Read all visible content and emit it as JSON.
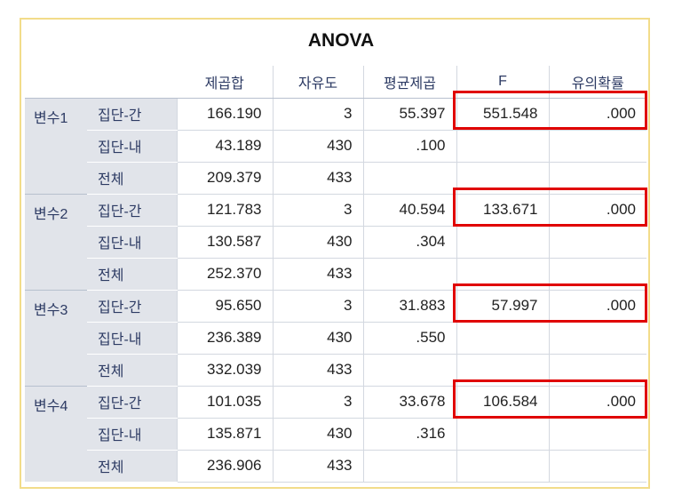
{
  "title": "ANOVA",
  "headers": [
    "제곱합",
    "자유도",
    "평균제곱",
    "F",
    "유의확률"
  ],
  "blocks": [
    {
      "var": "변수1",
      "rows": [
        {
          "group": "집단-간",
          "ss": "166.190",
          "df": "3",
          "ms": "55.397",
          "f": "551.548",
          "sig": ".000"
        },
        {
          "group": "집단-내",
          "ss": "43.189",
          "df": "430",
          "ms": ".100",
          "f": "",
          "sig": ""
        },
        {
          "group": "전체",
          "ss": "209.379",
          "df": "433",
          "ms": "",
          "f": "",
          "sig": ""
        }
      ]
    },
    {
      "var": "변수2",
      "rows": [
        {
          "group": "집단-간",
          "ss": "121.783",
          "df": "3",
          "ms": "40.594",
          "f": "133.671",
          "sig": ".000"
        },
        {
          "group": "집단-내",
          "ss": "130.587",
          "df": "430",
          "ms": ".304",
          "f": "",
          "sig": ""
        },
        {
          "group": "전체",
          "ss": "252.370",
          "df": "433",
          "ms": "",
          "f": "",
          "sig": ""
        }
      ]
    },
    {
      "var": "변수3",
      "rows": [
        {
          "group": "집단-간",
          "ss": "95.650",
          "df": "3",
          "ms": "31.883",
          "f": "57.997",
          "sig": ".000"
        },
        {
          "group": "집단-내",
          "ss": "236.389",
          "df": "430",
          "ms": ".550",
          "f": "",
          "sig": ""
        },
        {
          "group": "전체",
          "ss": "332.039",
          "df": "433",
          "ms": "",
          "f": "",
          "sig": ""
        }
      ]
    },
    {
      "var": "변수4",
      "rows": [
        {
          "group": "집단-간",
          "ss": "101.035",
          "df": "3",
          "ms": "33.678",
          "f": "106.584",
          "sig": ".000"
        },
        {
          "group": "집단-내",
          "ss": "135.871",
          "df": "430",
          "ms": ".316",
          "f": "",
          "sig": ""
        },
        {
          "group": "전체",
          "ss": "236.906",
          "df": "433",
          "ms": "",
          "f": "",
          "sig": ""
        }
      ]
    }
  ],
  "highlight_color": "#e00000"
}
